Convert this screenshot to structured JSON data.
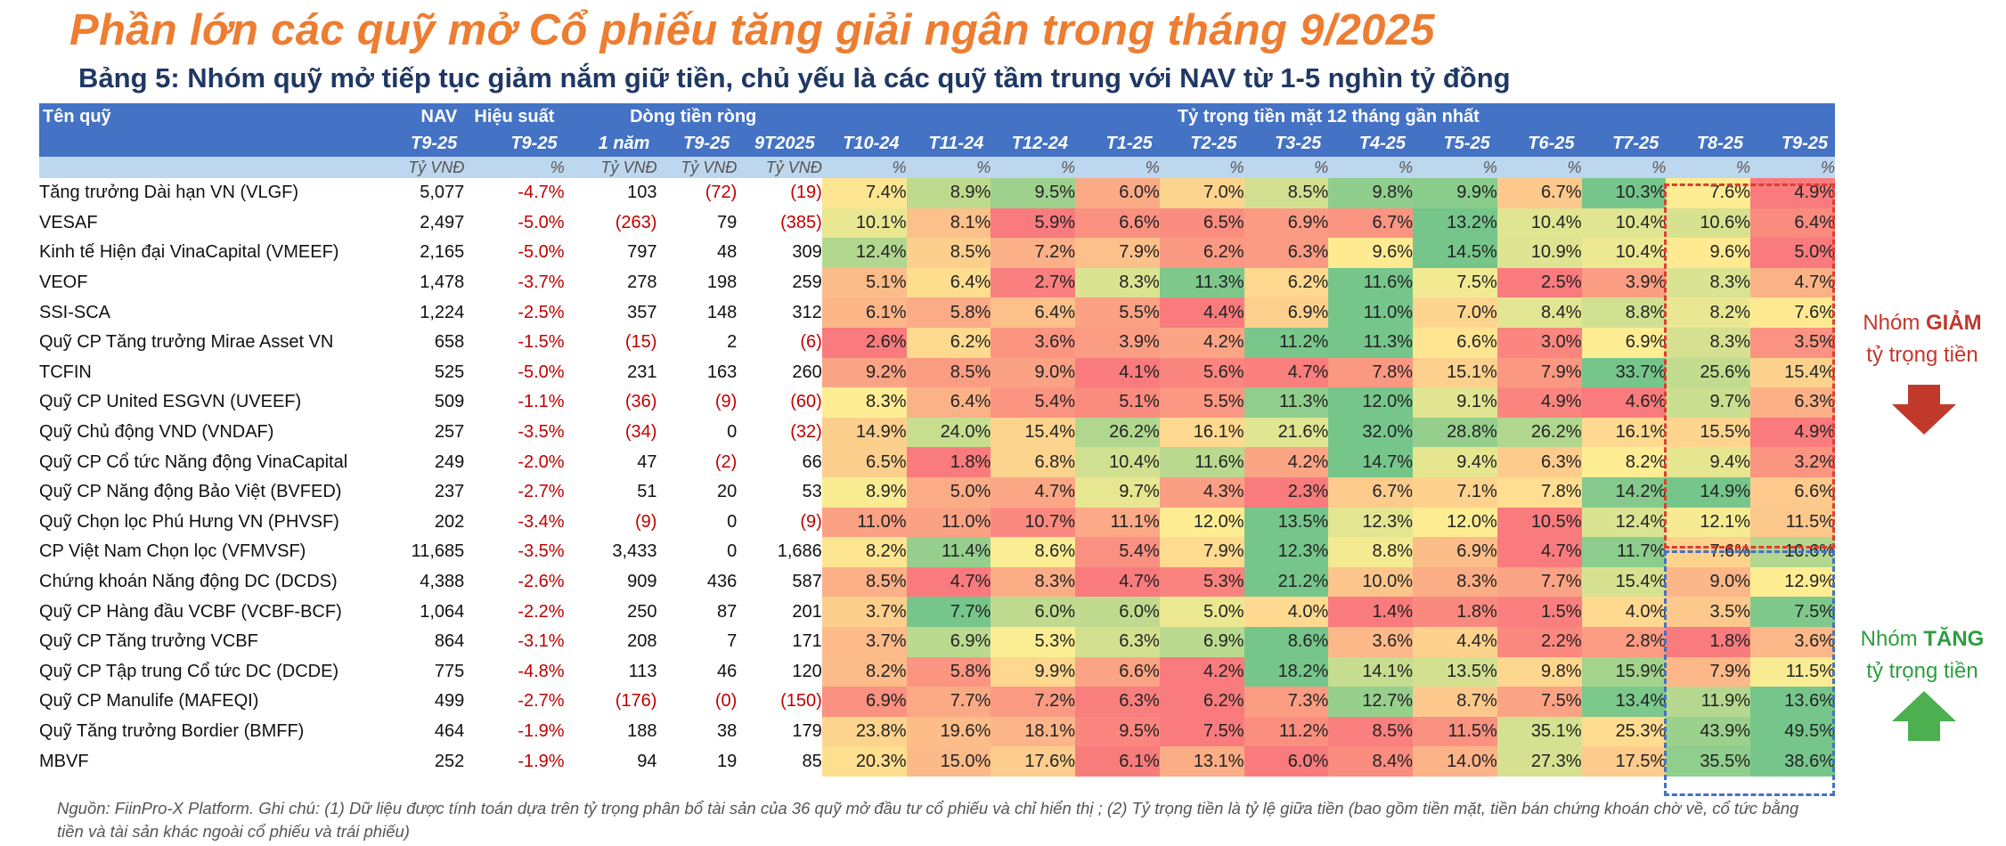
{
  "title": "Phần lớn các quỹ mở Cổ phiếu tăng giải ngân trong tháng 9/2025",
  "subtitle": "Bảng 5: Nhóm quỹ mở tiếp tục giảm nắm giữ tiền, chủ yếu là các quỹ tầm trung với NAV từ 1-5 nghìn tỷ đồng",
  "header": {
    "fund": "Tên quỹ",
    "nav": "NAV",
    "perf": "Hiệu suất",
    "flow": "Dòng tiền ròng",
    "cash": "Tỷ trọng tiền mặt 12 tháng gần nhất",
    "sub": [
      "T9-25",
      "T9-25",
      "1 năm",
      "T9-25",
      "9T2025",
      "T10-24",
      "T11-24",
      "T12-24",
      "T1-25",
      "T2-25",
      "T3-25",
      "T4-25",
      "T5-25",
      "T6-25",
      "T7-25",
      "T8-25",
      "T9-25"
    ],
    "units": [
      "Tỷ VNĐ",
      "%",
      "Tỷ VNĐ",
      "Tỷ VNĐ",
      "Tỷ VNĐ",
      "%",
      "%",
      "%",
      "%",
      "%",
      "%",
      "%",
      "%",
      "%",
      "%",
      "%",
      "%"
    ]
  },
  "rows": [
    {
      "name": "Tăng trưởng Dài hạn VN (VLGF)",
      "nav": "5,077",
      "perf": "-4.7%",
      "flow1y": "103",
      "flowT9": "(72)",
      "flow9T": "(19)",
      "cash": [
        7.4,
        8.9,
        9.5,
        6.0,
        7.0,
        8.5,
        9.8,
        9.9,
        6.7,
        10.3,
        7.6,
        4.9
      ]
    },
    {
      "name": "VESAF",
      "nav": "2,497",
      "perf": "-5.0%",
      "flow1y": "(263)",
      "flowT9": "79",
      "flow9T": "(385)",
      "cash": [
        10.1,
        8.1,
        5.9,
        6.6,
        6.5,
        6.9,
        6.7,
        13.2,
        10.4,
        10.4,
        10.6,
        6.4
      ]
    },
    {
      "name": "Kinh tế Hiện đại VinaCapital (VMEEF)",
      "nav": "2,165",
      "perf": "-5.0%",
      "flow1y": "797",
      "flowT9": "48",
      "flow9T": "309",
      "cash": [
        12.4,
        8.5,
        7.2,
        7.9,
        6.2,
        6.3,
        9.6,
        14.5,
        10.9,
        10.4,
        9.6,
        5.0
      ]
    },
    {
      "name": "VEOF",
      "nav": "1,478",
      "perf": "-3.7%",
      "flow1y": "278",
      "flowT9": "198",
      "flow9T": "259",
      "cash": [
        5.1,
        6.4,
        2.7,
        8.3,
        11.3,
        6.2,
        11.6,
        7.5,
        2.5,
        3.9,
        8.3,
        4.7
      ]
    },
    {
      "name": "SSI-SCA",
      "nav": "1,224",
      "perf": "-2.5%",
      "flow1y": "357",
      "flowT9": "148",
      "flow9T": "312",
      "cash": [
        6.1,
        5.8,
        6.4,
        5.5,
        4.4,
        6.9,
        11.0,
        7.0,
        8.4,
        8.8,
        8.2,
        7.6
      ]
    },
    {
      "name": "Quỹ CP Tăng trưởng Mirae Asset VN",
      "nav": "658",
      "perf": "-1.5%",
      "flow1y": "(15)",
      "flowT9": "2",
      "flow9T": "(6)",
      "cash": [
        2.6,
        6.2,
        3.6,
        3.9,
        4.2,
        11.2,
        11.3,
        6.6,
        3.0,
        6.9,
        8.3,
        3.5
      ]
    },
    {
      "name": "TCFIN",
      "nav": "525",
      "perf": "-5.0%",
      "flow1y": "231",
      "flowT9": "163",
      "flow9T": "260",
      "cash": [
        9.2,
        8.5,
        9.0,
        4.1,
        5.6,
        4.7,
        7.8,
        15.1,
        7.9,
        33.7,
        25.6,
        15.4
      ]
    },
    {
      "name": "Quỹ CP United ESGVN (UVEEF)",
      "nav": "509",
      "perf": "-1.1%",
      "flow1y": "(36)",
      "flowT9": "(9)",
      "flow9T": "(60)",
      "cash": [
        8.3,
        6.4,
        5.4,
        5.1,
        5.5,
        11.3,
        12.0,
        9.1,
        4.9,
        4.6,
        9.7,
        6.3
      ]
    },
    {
      "name": "Quỹ Chủ động VND (VNDAF)",
      "nav": "257",
      "perf": "-3.5%",
      "flow1y": "(34)",
      "flowT9": "0",
      "flow9T": "(32)",
      "cash": [
        14.9,
        24.0,
        15.4,
        26.2,
        16.1,
        21.6,
        32.0,
        28.8,
        26.2,
        16.1,
        15.5,
        4.9
      ]
    },
    {
      "name": "Quỹ CP Cổ tức Năng động VinaCapital",
      "nav": "249",
      "perf": "-2.0%",
      "flow1y": "47",
      "flowT9": "(2)",
      "flow9T": "66",
      "cash": [
        6.5,
        1.8,
        6.8,
        10.4,
        11.6,
        4.2,
        14.7,
        9.4,
        6.3,
        8.2,
        9.4,
        3.2
      ]
    },
    {
      "name": "Quỹ CP Năng động Bảo Việt (BVFED)",
      "nav": "237",
      "perf": "-2.7%",
      "flow1y": "51",
      "flowT9": "20",
      "flow9T": "53",
      "cash": [
        8.9,
        5.0,
        4.7,
        9.7,
        4.3,
        2.3,
        6.7,
        7.1,
        7.8,
        14.2,
        14.9,
        6.6
      ]
    },
    {
      "name": "Quỹ Chọn lọc Phú Hưng VN (PHVSF)",
      "nav": "202",
      "perf": "-3.4%",
      "flow1y": "(9)",
      "flowT9": "0",
      "flow9T": "(9)",
      "cash": [
        11.0,
        11.0,
        10.7,
        11.1,
        12.0,
        13.5,
        12.3,
        12.0,
        10.5,
        12.4,
        12.1,
        11.5
      ]
    },
    {
      "name": "CP Việt Nam Chọn lọc (VFMVSF)",
      "nav": "11,685",
      "perf": "-3.5%",
      "flow1y": "3,433",
      "flowT9": "0",
      "flow9T": "1,686",
      "cash": [
        8.2,
        11.4,
        8.6,
        5.4,
        7.9,
        12.3,
        8.8,
        6.9,
        4.7,
        11.7,
        7.6,
        10.6
      ]
    },
    {
      "name": "Chứng khoán Năng động DC (DCDS)",
      "nav": "4,388",
      "perf": "-2.6%",
      "flow1y": "909",
      "flowT9": "436",
      "flow9T": "587",
      "cash": [
        8.5,
        4.7,
        8.3,
        4.7,
        5.3,
        21.2,
        10.0,
        8.3,
        7.7,
        15.4,
        9.0,
        12.9
      ]
    },
    {
      "name": "Quỹ CP Hàng đầu VCBF (VCBF-BCF)",
      "nav": "1,064",
      "perf": "-2.2%",
      "flow1y": "250",
      "flowT9": "87",
      "flow9T": "201",
      "cash": [
        3.7,
        7.7,
        6.0,
        6.0,
        5.0,
        4.0,
        1.4,
        1.8,
        1.5,
        4.0,
        3.5,
        7.5
      ]
    },
    {
      "name": "Quỹ CP Tăng trưởng VCBF",
      "nav": "864",
      "perf": "-3.1%",
      "flow1y": "208",
      "flowT9": "7",
      "flow9T": "171",
      "cash": [
        3.7,
        6.9,
        5.3,
        6.3,
        6.9,
        8.6,
        3.6,
        4.4,
        2.2,
        2.8,
        1.8,
        3.6
      ]
    },
    {
      "name": "Quỹ CP Tập trung Cổ tức DC (DCDE)",
      "nav": "775",
      "perf": "-4.8%",
      "flow1y": "113",
      "flowT9": "46",
      "flow9T": "120",
      "cash": [
        8.2,
        5.8,
        9.9,
        6.6,
        4.2,
        18.2,
        14.1,
        13.5,
        9.8,
        15.9,
        7.9,
        11.5
      ]
    },
    {
      "name": "Quỹ CP Manulife (MAFEQI)",
      "nav": "499",
      "perf": "-2.7%",
      "flow1y": "(176)",
      "flowT9": "(0)",
      "flow9T": "(150)",
      "cash": [
        6.9,
        7.7,
        7.2,
        6.3,
        6.2,
        7.3,
        12.7,
        8.7,
        7.5,
        13.4,
        11.9,
        13.6
      ]
    },
    {
      "name": "Quỹ Tăng trưởng Bordier (BMFF)",
      "nav": "464",
      "perf": "-1.9%",
      "flow1y": "188",
      "flowT9": "38",
      "flow9T": "179",
      "cash": [
        23.8,
        19.6,
        18.1,
        9.5,
        7.5,
        11.2,
        8.5,
        11.5,
        35.1,
        25.3,
        43.9,
        49.5
      ]
    },
    {
      "name": "MBVF",
      "nav": "252",
      "perf": "-1.9%",
      "flow1y": "94",
      "flowT9": "19",
      "flow9T": "85",
      "cash": [
        20.3,
        15.0,
        17.6,
        6.1,
        13.1,
        6.0,
        8.4,
        14.0,
        27.3,
        17.5,
        35.5,
        38.6
      ]
    }
  ],
  "side": {
    "dec_prefix": "Nhóm ",
    "dec_bold": "GIẢM",
    "dec_suffix": "tỷ trọng tiền",
    "inc_prefix": "Nhóm ",
    "inc_bold": "TĂNG",
    "inc_suffix": "tỷ trọng tiền"
  },
  "footnote": "Nguồn: FiinPro-X Platform. Ghi chú: (1) Dữ liệu được tính toán dựa trên tỷ trọng phân bổ tài sản của 36 quỹ mở đầu tư cổ phiếu và chỉ hiển thị ; (2) Tỷ trọng tiền là tỷ lệ giữa tiền (bao gồm tiền mặt, tiền bán chứng khoán chờ về, cổ tức bằng tiền và tài sản khác ngoài cổ phiếu và trái phiếu)",
  "colors": {
    "title": "#ED7D31",
    "subtitle": "#1F3864",
    "header_bg": "#4472C4",
    "units_bg": "#BDD7EE",
    "negative": "#C00000",
    "scale_low": "#F8696B",
    "scale_mid": "#FFEB84",
    "scale_high": "#63BE7B",
    "box_decrease": "#E03C31",
    "box_increase": "#4472C4"
  }
}
